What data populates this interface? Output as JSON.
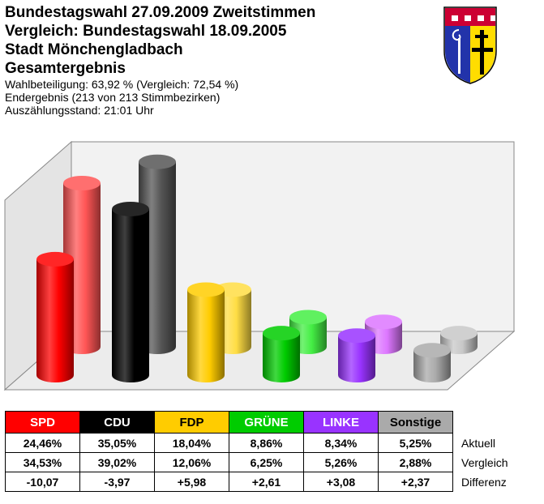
{
  "header": {
    "title_lines": [
      "Bundestagswahl 27.09.2009 Zweitstimmen",
      "Vergleich: Bundestagswahl 18.09.2005",
      "Stadt Mönchengladbach",
      "Gesamtergebnis"
    ],
    "info_lines": [
      "Wahlbeteiligung: 63,92 % (Vergleich: 72,54 %)",
      "Endergebnis (213 von 213 Stimmbezirken)",
      "Auszählungsstand: 21:01 Uhr"
    ]
  },
  "crest": {
    "icon": "city-coat-of-arms-icon"
  },
  "chart_data": {
    "type": "bar",
    "style": "3d-cylinders",
    "categories": [
      "SPD",
      "CDU",
      "FDP",
      "GRÜNE",
      "LINKE",
      "Sonstige"
    ],
    "series": [
      {
        "name": "Aktuell",
        "values": [
          24.46,
          35.05,
          18.04,
          8.86,
          8.34,
          5.25
        ]
      },
      {
        "name": "Vergleich",
        "values": [
          34.53,
          39.02,
          12.06,
          6.25,
          5.26,
          2.88
        ]
      }
    ],
    "colors": [
      "#ff0000",
      "#000000",
      "#ffcc00",
      "#00cc00",
      "#9933ff",
      "#aaaaaa"
    ],
    "light_colors": [
      "#ff5555",
      "#555555",
      "#ffdd44",
      "#44ee44",
      "#dd77ff",
      "#c8c8c8"
    ],
    "ylim": [
      0,
      40
    ],
    "grid": false
  },
  "table": {
    "parties": [
      {
        "label": "SPD",
        "bg": "#ff0000",
        "fg": "#ffffff"
      },
      {
        "label": "CDU",
        "bg": "#000000",
        "fg": "#ffffff"
      },
      {
        "label": "FDP",
        "bg": "#ffcc00",
        "fg": "#000000"
      },
      {
        "label": "GRÜNE",
        "bg": "#00cc00",
        "fg": "#ffffff"
      },
      {
        "label": "LINKE",
        "bg": "#9933ff",
        "fg": "#ffffff"
      },
      {
        "label": "Sonstige",
        "bg": "#aaaaaa",
        "fg": "#000000"
      }
    ],
    "rows": [
      {
        "label": "Aktuell",
        "cells": [
          "24,46%",
          "35,05%",
          "18,04%",
          "8,86%",
          "8,34%",
          "5,25%"
        ]
      },
      {
        "label": "Vergleich",
        "cells": [
          "34,53%",
          "39,02%",
          "12,06%",
          "6,25%",
          "5,26%",
          "2,88%"
        ]
      },
      {
        "label": "Differenz",
        "cells": [
          "-10,07",
          "-3,97",
          "+5,98",
          "+2,61",
          "+3,08",
          "+2,37"
        ]
      }
    ]
  }
}
